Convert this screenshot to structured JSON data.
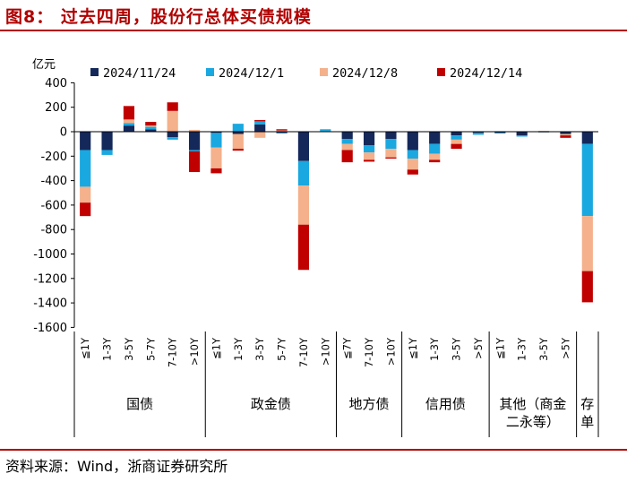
{
  "header": {
    "title": "图8：  过去四周，股份行总体买债规模"
  },
  "footer": {
    "source": "资料来源：Wind，浙商证券研究所"
  },
  "chart_data": {
    "type": "bar",
    "stacked": true,
    "title": "",
    "ylabel": "亿元",
    "ylim": [
      -1600,
      400
    ],
    "yticks": [
      -1600,
      -1400,
      -1200,
      -1000,
      -800,
      -600,
      -400,
      -200,
      0,
      200,
      400
    ],
    "legend_position": "top",
    "grid": false,
    "categories": [
      "≦1Y",
      "1-3Y",
      "3-5Y",
      "5-7Y",
      "7-10Y",
      ">10Y",
      "≦1Y",
      "1-3Y",
      "3-5Y",
      "5-7Y",
      "7-10Y",
      ">10Y",
      "≦7Y",
      "7-10Y",
      ">10Y",
      "≦1Y",
      "1-3Y",
      "3-5Y",
      ">5Y",
      "≦1Y",
      "1-3Y",
      "3-5Y",
      ">5Y",
      ""
    ],
    "groups": [
      {
        "label": "国债",
        "start": 0,
        "end": 5
      },
      {
        "label": "政金债",
        "start": 6,
        "end": 11
      },
      {
        "label": "地方债",
        "start": 12,
        "end": 14
      },
      {
        "label": "信用债",
        "start": 15,
        "end": 18
      },
      {
        "label": "其他（商金\n二永等）",
        "start": 19,
        "end": 22
      },
      {
        "label": "存\n单",
        "start": 23,
        "end": 23
      }
    ],
    "series": [
      {
        "name": "2024/11/24",
        "color": "#14285a",
        "values": [
          -150,
          -150,
          50,
          20,
          -45,
          -150,
          -10,
          -20,
          60,
          -10,
          -240,
          5,
          -60,
          -110,
          -60,
          -150,
          -100,
          -30,
          -10,
          -10,
          -30,
          -5,
          -20,
          -100
        ]
      },
      {
        "name": "2024/12/1",
        "color": "#1aa8e0",
        "values": [
          -300,
          -40,
          20,
          20,
          -20,
          -10,
          -120,
          65,
          25,
          -5,
          -200,
          15,
          -40,
          -60,
          -80,
          -70,
          -80,
          -35,
          -15,
          -5,
          -10,
          0,
          0,
          -590
        ]
      },
      {
        "name": "2024/12/8",
        "color": "#f4b18b",
        "values": [
          -130,
          0,
          30,
          10,
          170,
          15,
          -170,
          -120,
          -50,
          10,
          -320,
          0,
          -50,
          -60,
          -70,
          -90,
          -50,
          -35,
          0,
          0,
          0,
          0,
          -10,
          -450
        ]
      },
      {
        "name": "2024/12/14",
        "color": "#c00000",
        "values": [
          -110,
          0,
          110,
          30,
          70,
          -170,
          -40,
          -15,
          10,
          10,
          -370,
          0,
          -100,
          -15,
          -10,
          -40,
          -20,
          -40,
          0,
          0,
          0,
          5,
          -20,
          -255
        ]
      }
    ]
  }
}
